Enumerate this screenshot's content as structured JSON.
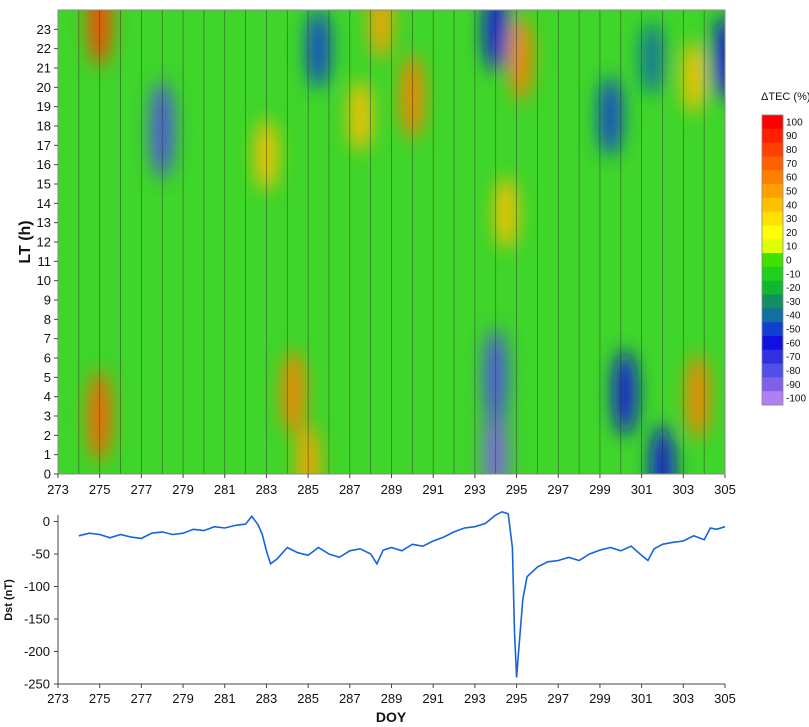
{
  "chart_data": [
    {
      "type": "heatmap",
      "xlabel": "",
      "ylabel": "LT (h)",
      "xlim": [
        273,
        305
      ],
      "ylim": [
        0,
        24
      ],
      "x_ticks": [
        "273",
        "275",
        "277",
        "279",
        "281",
        "283",
        "285",
        "287",
        "289",
        "291",
        "293",
        "295",
        "297",
        "299",
        "301",
        "303",
        "305"
      ],
      "y_ticks": [
        "0",
        "1",
        "2",
        "3",
        "4",
        "5",
        "6",
        "7",
        "8",
        "9",
        "10",
        "11",
        "12",
        "13",
        "14",
        "15",
        "16",
        "17",
        "18",
        "19",
        "20",
        "21",
        "22",
        "23"
      ],
      "colorbar": {
        "label": "ΔTEC (%)",
        "ticks": [
          "100",
          "90",
          "80",
          "70",
          "60",
          "50",
          "40",
          "30",
          "20",
          "10",
          "0",
          "-10",
          "-20",
          "-30",
          "-40",
          "-50",
          "-60",
          "-70",
          "-80",
          "-90",
          "-100"
        ],
        "colors": [
          "#ff0000",
          "#ff2000",
          "#ff4000",
          "#ff6000",
          "#ff8000",
          "#ffa000",
          "#ffc000",
          "#ffe000",
          "#ffff00",
          "#e0ff00",
          "#40e000",
          "#20d020",
          "#10b830",
          "#109060",
          "#1070a0",
          "#1040d0",
          "#1010e0",
          "#3030e0",
          "#5050e8",
          "#8060e8",
          "#b080f0"
        ]
      },
      "features": [
        {
          "x": 275,
          "y": 3,
          "value": 70
        },
        {
          "x": 275,
          "y": 23.6,
          "value": 80
        },
        {
          "x": 278,
          "y": 17.8,
          "value": -80
        },
        {
          "x": 283,
          "y": 16.5,
          "value": 40
        },
        {
          "x": 284.3,
          "y": 4.2,
          "value": 60
        },
        {
          "x": 285,
          "y": 0.5,
          "value": 50
        },
        {
          "x": 285.5,
          "y": 22,
          "value": -50
        },
        {
          "x": 287.5,
          "y": 18.5,
          "value": 40
        },
        {
          "x": 288.5,
          "y": 23.5,
          "value": 50
        },
        {
          "x": 290,
          "y": 19.5,
          "value": 60
        },
        {
          "x": 294,
          "y": 1,
          "value": -90
        },
        {
          "x": 294,
          "y": 5,
          "value": -80
        },
        {
          "x": 294,
          "y": 23,
          "value": -60
        },
        {
          "x": 294.5,
          "y": 13.5,
          "value": 40
        },
        {
          "x": 295.2,
          "y": 21.5,
          "value": 60
        },
        {
          "x": 299.5,
          "y": 18.5,
          "value": -50
        },
        {
          "x": 300.2,
          "y": 4.2,
          "value": -60
        },
        {
          "x": 301.5,
          "y": 21.5,
          "value": -40
        },
        {
          "x": 302,
          "y": 0.3,
          "value": -60
        },
        {
          "x": 303.7,
          "y": 4,
          "value": 60
        },
        {
          "x": 303.5,
          "y": 20.5,
          "value": 40
        },
        {
          "x": 305,
          "y": 21.5,
          "value": -60
        }
      ]
    },
    {
      "type": "line",
      "xlabel": "DOY",
      "ylabel": "Dst (nT)",
      "xlim": [
        273,
        305
      ],
      "ylim": [
        -250,
        10
      ],
      "x_ticks": [
        "273",
        "275",
        "277",
        "279",
        "281",
        "283",
        "285",
        "287",
        "289",
        "291",
        "293",
        "295",
        "297",
        "299",
        "301",
        "303",
        "305"
      ],
      "y_ticks": [
        "0",
        "-50",
        "-100",
        "-150",
        "-200",
        "-250"
      ],
      "series": [
        {
          "color": "#1565d8",
          "x": [
            274,
            274.5,
            275,
            275.5,
            276,
            276.5,
            277,
            277.5,
            278,
            278.5,
            279,
            279.5,
            280,
            280.5,
            281,
            281.5,
            282,
            282.3,
            282.6,
            282.8,
            283,
            283.2,
            283.5,
            284,
            284.5,
            285,
            285.5,
            286,
            286.5,
            287,
            287.5,
            288,
            288.3,
            288.6,
            289,
            289.5,
            290,
            290.5,
            291,
            291.5,
            292,
            292.5,
            293,
            293.5,
            294,
            294.3,
            294.6,
            294.8,
            294.9,
            295,
            295.1,
            295.3,
            295.5,
            296,
            296.5,
            297,
            297.5,
            298,
            298.5,
            299,
            299.5,
            300,
            300.5,
            301,
            301.3,
            301.6,
            302,
            302.5,
            303,
            303.5,
            304,
            304.3,
            304.6,
            305
          ],
          "y": [
            -22,
            -18,
            -20,
            -25,
            -20,
            -24,
            -26,
            -18,
            -16,
            -20,
            -18,
            -12,
            -14,
            -8,
            -10,
            -6,
            -4,
            8,
            -5,
            -20,
            -45,
            -65,
            -58,
            -40,
            -48,
            -52,
            -40,
            -50,
            -55,
            -45,
            -42,
            -50,
            -65,
            -44,
            -40,
            -45,
            -35,
            -38,
            -30,
            -24,
            -16,
            -10,
            -8,
            -3,
            10,
            15,
            12,
            -40,
            -170,
            -240,
            -200,
            -120,
            -85,
            -70,
            -62,
            -60,
            -55,
            -60,
            -50,
            -44,
            -40,
            -45,
            -38,
            -52,
            -60,
            -42,
            -35,
            -32,
            -30,
            -22,
            -28,
            -10,
            -12,
            -8
          ]
        }
      ]
    }
  ]
}
